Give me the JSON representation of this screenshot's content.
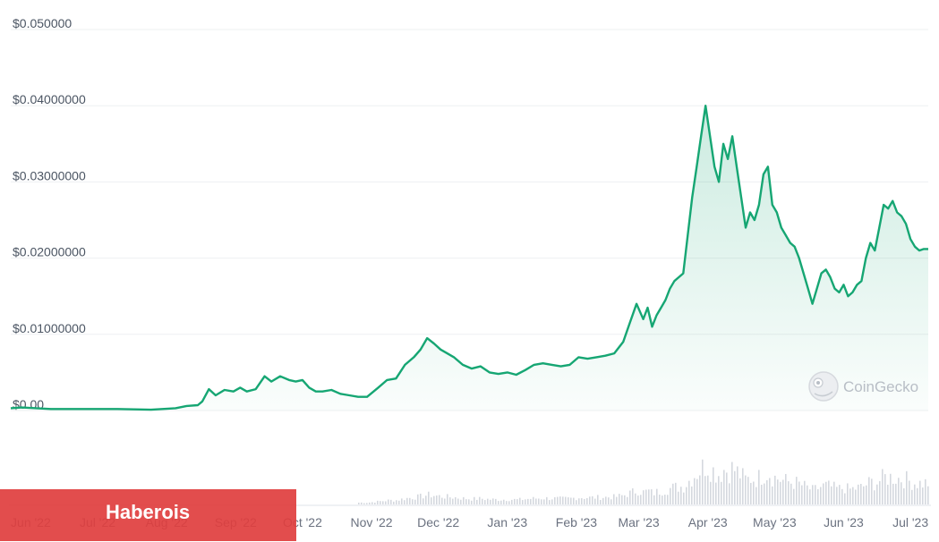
{
  "chart_data": {
    "type": "area",
    "y_tick_labels": [
      "$0.050000",
      "$0.04000000",
      "$0.03000000",
      "$0.02000000",
      "$0.01000000",
      "$0.00"
    ],
    "y_tick_values": [
      0.05,
      0.04,
      0.03,
      0.02,
      0.01,
      0
    ],
    "ylim": [
      0,
      0.05
    ],
    "x_tick_labels": [
      "Jun '22",
      "Jul '22",
      "Aug '22",
      "Sep '22",
      "Oct '22",
      "Nov '22",
      "Dec '22",
      "Jan '23",
      "Feb '23",
      "Mar '23",
      "Apr '23",
      "May '23",
      "Jun '23",
      "Jul '23"
    ],
    "x_tick_values": [
      "2022-06-01",
      "2022-07-01",
      "2022-08-01",
      "2022-09-01",
      "2022-10-01",
      "2022-11-01",
      "2022-12-01",
      "2023-01-01",
      "2023-02-01",
      "2023-03-01",
      "2023-04-01",
      "2023-05-01",
      "2023-06-01",
      "2023-07-01"
    ],
    "xlim": [
      "2022-05-23",
      "2023-07-09"
    ],
    "grid": "horizontal",
    "line_color": "#16a673",
    "fill_color": "#16a673",
    "volume_color": "#d4d8de",
    "series": [
      {
        "x": [
          "2022-05-23",
          "2022-05-28",
          "2022-06-10",
          "2022-06-25",
          "2022-07-10",
          "2022-07-25",
          "2022-08-05",
          "2022-08-10",
          "2022-08-15",
          "2022-08-17",
          "2022-08-20",
          "2022-08-23",
          "2022-08-27",
          "2022-08-31",
          "2022-09-03",
          "2022-09-06",
          "2022-09-10",
          "2022-09-14",
          "2022-09-17",
          "2022-09-21",
          "2022-09-25",
          "2022-09-28",
          "2022-10-01",
          "2022-10-04",
          "2022-10-07",
          "2022-10-10",
          "2022-10-14",
          "2022-10-18",
          "2022-10-22",
          "2022-10-26",
          "2022-10-30",
          "2022-11-04",
          "2022-11-08",
          "2022-11-12",
          "2022-11-16",
          "2022-11-20",
          "2022-11-23",
          "2022-11-26",
          "2022-11-29",
          "2022-12-02",
          "2022-12-05",
          "2022-12-08",
          "2022-12-12",
          "2022-12-16",
          "2022-12-20",
          "2022-12-24",
          "2022-12-28",
          "2023-01-01",
          "2023-01-05",
          "2023-01-09",
          "2023-01-13",
          "2023-01-17",
          "2023-01-21",
          "2023-01-25",
          "2023-01-29",
          "2023-02-02",
          "2023-02-06",
          "2023-02-10",
          "2023-02-14",
          "2023-02-18",
          "2023-02-22",
          "2023-02-25",
          "2023-02-28",
          "2023-03-03",
          "2023-03-05",
          "2023-03-07",
          "2023-03-09",
          "2023-03-11",
          "2023-03-13",
          "2023-03-15",
          "2023-03-17",
          "2023-03-19",
          "2023-03-21",
          "2023-03-23",
          "2023-03-25",
          "2023-03-27",
          "2023-03-29",
          "2023-03-31",
          "2023-04-02",
          "2023-04-04",
          "2023-04-06",
          "2023-04-08",
          "2023-04-10",
          "2023-04-12",
          "2023-04-14",
          "2023-04-16",
          "2023-04-18",
          "2023-04-20",
          "2023-04-22",
          "2023-04-24",
          "2023-04-26",
          "2023-04-28",
          "2023-04-30",
          "2023-05-02",
          "2023-05-04",
          "2023-05-06",
          "2023-05-08",
          "2023-05-10",
          "2023-05-12",
          "2023-05-14",
          "2023-05-16",
          "2023-05-18",
          "2023-05-20",
          "2023-05-22",
          "2023-05-24",
          "2023-05-26",
          "2023-05-28",
          "2023-05-30",
          "2023-06-01",
          "2023-06-03",
          "2023-06-05",
          "2023-06-07",
          "2023-06-09",
          "2023-06-11",
          "2023-06-13",
          "2023-06-15",
          "2023-06-17",
          "2023-06-19",
          "2023-06-21",
          "2023-06-23",
          "2023-06-25",
          "2023-06-27",
          "2023-06-29",
          "2023-07-01",
          "2023-07-03",
          "2023-07-05",
          "2023-07-07",
          "2023-07-09"
        ],
        "values": [
          0.0003,
          0.0004,
          0.0002,
          0.0002,
          0.0002,
          0.0001,
          0.0003,
          0.0006,
          0.0007,
          0.0012,
          0.0028,
          0.002,
          0.0027,
          0.0025,
          0.003,
          0.0025,
          0.0028,
          0.0045,
          0.0038,
          0.0045,
          0.004,
          0.0038,
          0.004,
          0.003,
          0.0025,
          0.0025,
          0.0027,
          0.0022,
          0.002,
          0.0018,
          0.0018,
          0.003,
          0.004,
          0.0042,
          0.006,
          0.007,
          0.008,
          0.0095,
          0.0088,
          0.008,
          0.0075,
          0.007,
          0.006,
          0.0055,
          0.0058,
          0.005,
          0.0048,
          0.005,
          0.0047,
          0.0053,
          0.006,
          0.0062,
          0.006,
          0.0058,
          0.006,
          0.007,
          0.0068,
          0.007,
          0.0072,
          0.0075,
          0.009,
          0.0115,
          0.014,
          0.012,
          0.0135,
          0.011,
          0.0125,
          0.0135,
          0.0145,
          0.016,
          0.017,
          0.0175,
          0.018,
          0.023,
          0.028,
          0.032,
          0.036,
          0.04,
          0.036,
          0.032,
          0.03,
          0.035,
          0.033,
          0.036,
          0.032,
          0.028,
          0.024,
          0.026,
          0.025,
          0.027,
          0.031,
          0.032,
          0.027,
          0.026,
          0.024,
          0.023,
          0.022,
          0.0215,
          0.02,
          0.018,
          0.016,
          0.014,
          0.016,
          0.018,
          0.0185,
          0.0175,
          0.016,
          0.0155,
          0.0165,
          0.015,
          0.0155,
          0.0165,
          0.017,
          0.02,
          0.022,
          0.021,
          0.024,
          0.027,
          0.0265,
          0.0275,
          0.026,
          0.0255,
          0.0245,
          0.0225,
          0.0215,
          0.021,
          0.0212,
          0.0212
        ]
      }
    ]
  },
  "watermark": {
    "text": "CoinGecko",
    "icon": "gecko-logo-icon"
  },
  "banner": {
    "text": "Haberois"
  },
  "colors": {
    "banner": "#e03e3e",
    "grid": "#eef0f2",
    "axis": "#dfe3e8"
  }
}
